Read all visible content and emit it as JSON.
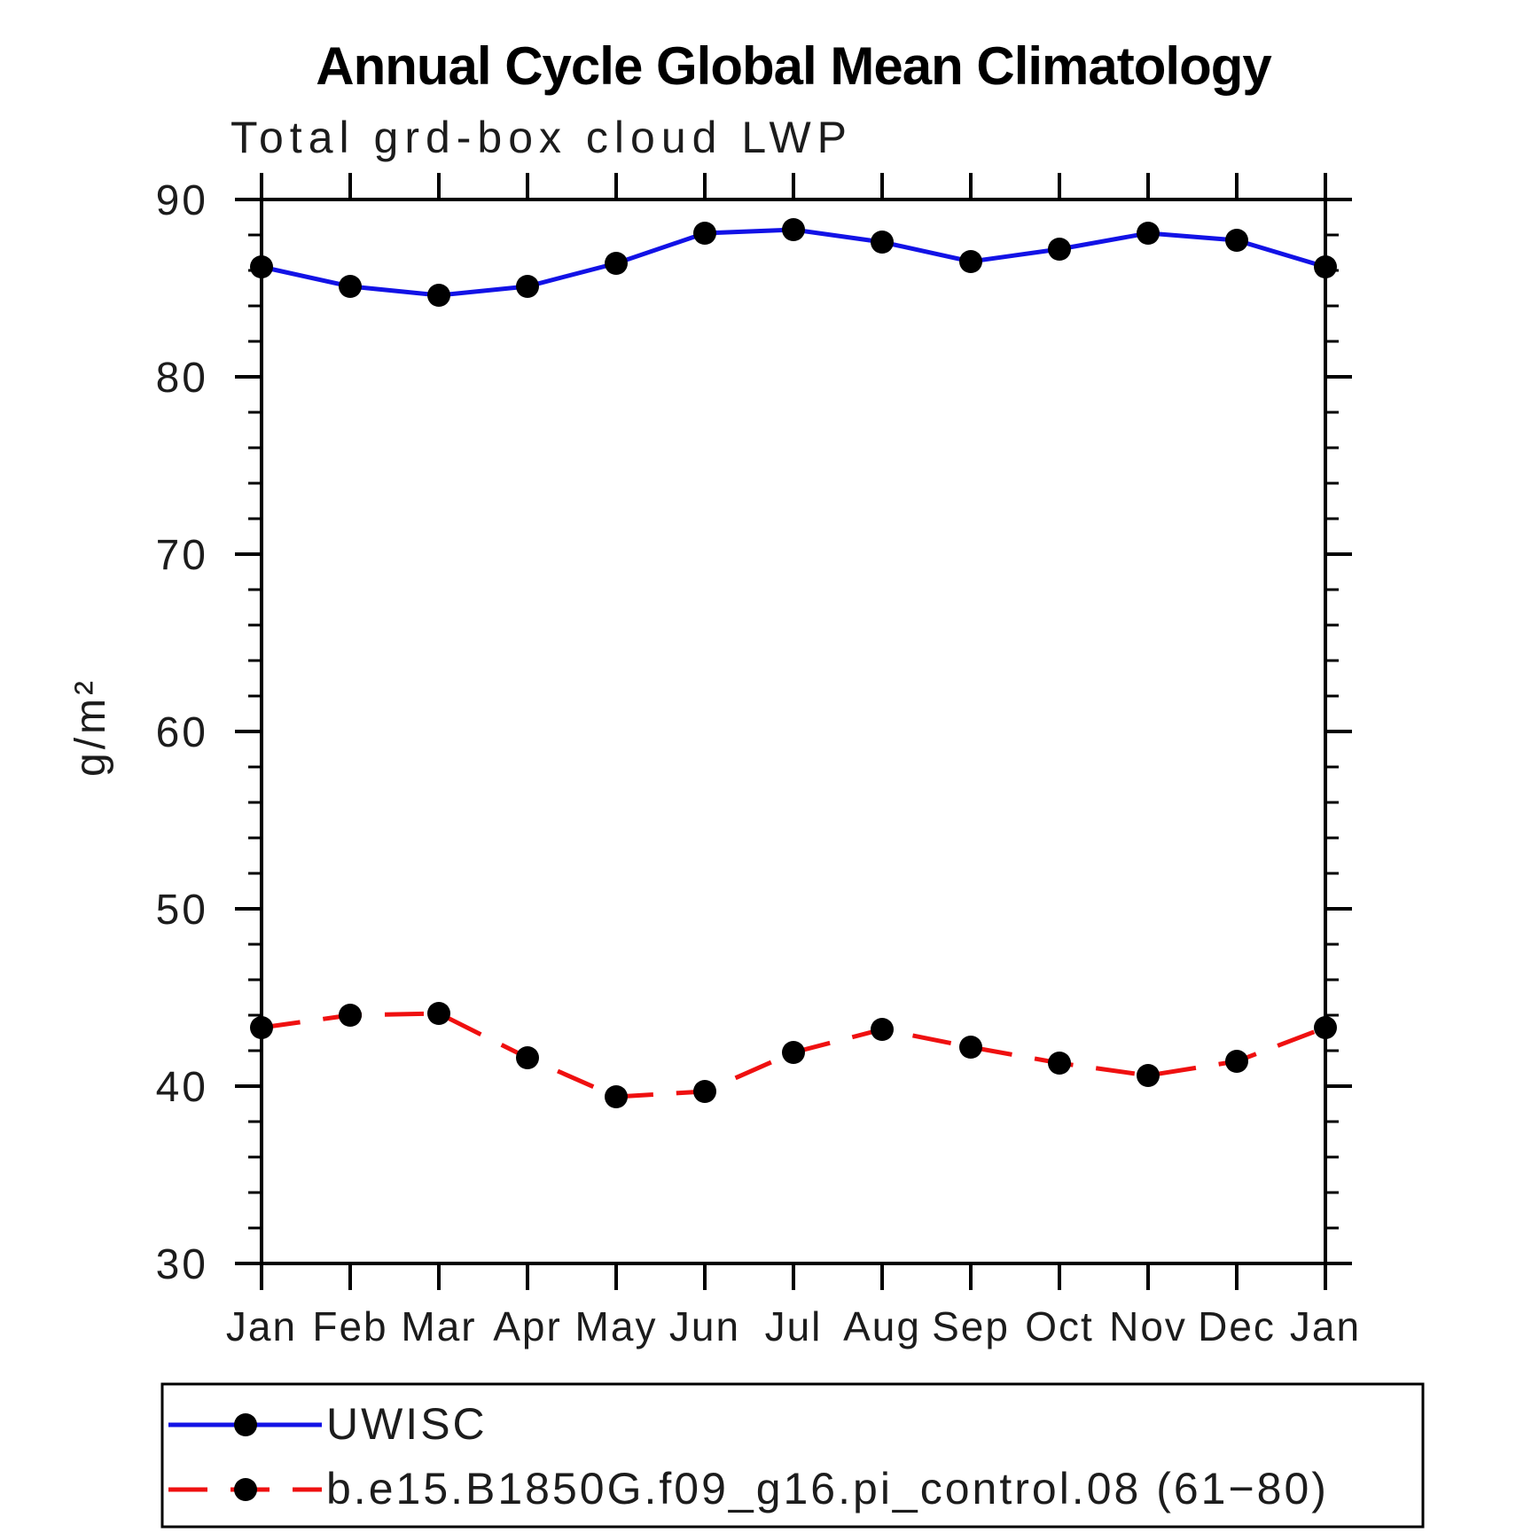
{
  "page": {
    "background": "#ffffff",
    "text_color": "#1c1c1c",
    "axis_color": "#000000"
  },
  "chart_data": {
    "type": "line",
    "title": "Annual Cycle Global Mean Climatology",
    "subtitle": "Total grd-box cloud LWP",
    "xlabel": "",
    "ylabel": "g/m²",
    "categories": [
      "Jan",
      "Feb",
      "Mar",
      "Apr",
      "May",
      "Jun",
      "Jul",
      "Aug",
      "Sep",
      "Oct",
      "Nov",
      "Dec",
      "Jan"
    ],
    "ylim": [
      30,
      90
    ],
    "y_major_step": 10,
    "y_minor_step": 2,
    "grid": false,
    "legend_position": "bottom-left-box",
    "series": [
      {
        "name": "UWISC",
        "color": "#1212e6",
        "line_style": "solid",
        "marker": "circle",
        "marker_color": "#000000",
        "values": [
          86.2,
          85.1,
          84.6,
          85.1,
          86.4,
          88.1,
          88.3,
          87.6,
          86.5,
          87.2,
          88.1,
          87.7,
          86.2
        ]
      },
      {
        "name": "b.e15.B1850G.f09_g16.pi_control.08 (61−80)",
        "color": "#ef1010",
        "line_style": "dashed",
        "marker": "circle",
        "marker_color": "#000000",
        "values": [
          43.3,
          44.0,
          44.1,
          41.6,
          39.4,
          39.7,
          41.9,
          43.2,
          42.2,
          41.3,
          40.6,
          41.4,
          43.3
        ]
      }
    ]
  }
}
